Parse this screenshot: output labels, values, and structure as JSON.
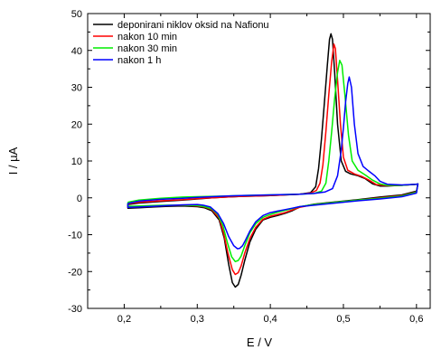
{
  "chart_data": {
    "type": "line",
    "xlabel": "E / V",
    "ylabel": "I / µA",
    "xlim": [
      0.15,
      0.62
    ],
    "ylim": [
      -30,
      50
    ],
    "xticks": [
      0.2,
      0.3,
      0.4,
      0.5,
      0.6
    ],
    "xtick_labels": [
      "0,2",
      "0,3",
      "0,4",
      "0,5",
      "0,6"
    ],
    "yticks": [
      -30,
      -20,
      -10,
      0,
      10,
      20,
      30,
      40,
      50
    ],
    "ytick_labels": [
      "-30",
      "-20",
      "-10",
      "0",
      "10",
      "20",
      "30",
      "40",
      "50"
    ],
    "grid": false,
    "legend_position": "top-left",
    "series": [
      {
        "name": "deponirani niklov oksid na Nafionu",
        "color": "#000000",
        "anodic": [
          [
            0.205,
            -1.8
          ],
          [
            0.22,
            -1.4
          ],
          [
            0.25,
            -1.0
          ],
          [
            0.28,
            -0.6
          ],
          [
            0.3,
            -0.3
          ],
          [
            0.32,
            0.0
          ],
          [
            0.34,
            0.2
          ],
          [
            0.36,
            0.4
          ],
          [
            0.38,
            0.5
          ],
          [
            0.4,
            0.6
          ],
          [
            0.42,
            0.8
          ],
          [
            0.44,
            1.0
          ],
          [
            0.455,
            1.4
          ],
          [
            0.462,
            3
          ],
          [
            0.466,
            8
          ],
          [
            0.47,
            16
          ],
          [
            0.474,
            26
          ],
          [
            0.478,
            36
          ],
          [
            0.481,
            43
          ],
          [
            0.483,
            44.5
          ],
          [
            0.485,
            43
          ],
          [
            0.488,
            34
          ],
          [
            0.492,
            20
          ],
          [
            0.497,
            10
          ],
          [
            0.503,
            7.2
          ],
          [
            0.51,
            6.5
          ],
          [
            0.52,
            6.0
          ],
          [
            0.53,
            5.2
          ],
          [
            0.54,
            3.8
          ],
          [
            0.55,
            3.2
          ],
          [
            0.56,
            3.2
          ],
          [
            0.57,
            3.3
          ],
          [
            0.58,
            3.4
          ],
          [
            0.6,
            3.7
          ],
          [
            0.602,
            3.8
          ]
        ],
        "cathodic": [
          [
            0.602,
            3.8
          ],
          [
            0.6,
            1.8
          ],
          [
            0.58,
            0.8
          ],
          [
            0.55,
            0.2
          ],
          [
            0.52,
            -0.5
          ],
          [
            0.5,
            -0.9
          ],
          [
            0.48,
            -1.3
          ],
          [
            0.46,
            -1.7
          ],
          [
            0.44,
            -2.5
          ],
          [
            0.43,
            -3.5
          ],
          [
            0.42,
            -4.2
          ],
          [
            0.41,
            -4.8
          ],
          [
            0.4,
            -5.3
          ],
          [
            0.39,
            -6.0
          ],
          [
            0.38,
            -8.5
          ],
          [
            0.372,
            -12
          ],
          [
            0.365,
            -17
          ],
          [
            0.36,
            -21
          ],
          [
            0.356,
            -23.5
          ],
          [
            0.352,
            -24.2
          ],
          [
            0.348,
            -23
          ],
          [
            0.343,
            -18
          ],
          [
            0.337,
            -11
          ],
          [
            0.33,
            -6
          ],
          [
            0.32,
            -3.5
          ],
          [
            0.31,
            -2.7
          ],
          [
            0.3,
            -2.4
          ],
          [
            0.28,
            -2.2
          ],
          [
            0.26,
            -2.3
          ],
          [
            0.24,
            -2.5
          ],
          [
            0.22,
            -2.7
          ],
          [
            0.205,
            -2.8
          ]
        ]
      },
      {
        "name": "nakon 10 min",
        "color": "#ff0000",
        "anodic": [
          [
            0.205,
            -1.6
          ],
          [
            0.22,
            -1.2
          ],
          [
            0.25,
            -0.8
          ],
          [
            0.28,
            -0.5
          ],
          [
            0.3,
            -0.2
          ],
          [
            0.32,
            0.0
          ],
          [
            0.34,
            0.2
          ],
          [
            0.36,
            0.4
          ],
          [
            0.38,
            0.5
          ],
          [
            0.4,
            0.6
          ],
          [
            0.42,
            0.8
          ],
          [
            0.44,
            1.0
          ],
          [
            0.455,
            1.3
          ],
          [
            0.463,
            2
          ],
          [
            0.468,
            4
          ],
          [
            0.472,
            9
          ],
          [
            0.476,
            18
          ],
          [
            0.48,
            28
          ],
          [
            0.484,
            37
          ],
          [
            0.487,
            41.7
          ],
          [
            0.489,
            40.5
          ],
          [
            0.492,
            32
          ],
          [
            0.496,
            20
          ],
          [
            0.5,
            11
          ],
          [
            0.506,
            7.5
          ],
          [
            0.515,
            6.5
          ],
          [
            0.525,
            5.8
          ],
          [
            0.535,
            4.8
          ],
          [
            0.545,
            3.6
          ],
          [
            0.56,
            3.3
          ],
          [
            0.58,
            3.4
          ],
          [
            0.6,
            3.7
          ],
          [
            0.602,
            3.8
          ]
        ],
        "cathodic": [
          [
            0.602,
            3.8
          ],
          [
            0.6,
            1.6
          ],
          [
            0.58,
            0.6
          ],
          [
            0.55,
            0.0
          ],
          [
            0.52,
            -0.6
          ],
          [
            0.5,
            -1.0
          ],
          [
            0.48,
            -1.4
          ],
          [
            0.46,
            -1.8
          ],
          [
            0.44,
            -2.6
          ],
          [
            0.43,
            -3.3
          ],
          [
            0.42,
            -4.0
          ],
          [
            0.41,
            -4.5
          ],
          [
            0.4,
            -5.0
          ],
          [
            0.39,
            -5.8
          ],
          [
            0.38,
            -8
          ],
          [
            0.372,
            -11
          ],
          [
            0.365,
            -15
          ],
          [
            0.36,
            -18.5
          ],
          [
            0.356,
            -20.3
          ],
          [
            0.352,
            -20.8
          ],
          [
            0.348,
            -19.5
          ],
          [
            0.342,
            -15
          ],
          [
            0.336,
            -9.5
          ],
          [
            0.33,
            -5.5
          ],
          [
            0.32,
            -3.2
          ],
          [
            0.31,
            -2.5
          ],
          [
            0.3,
            -2.2
          ],
          [
            0.28,
            -2.0
          ],
          [
            0.26,
            -2.1
          ],
          [
            0.24,
            -2.3
          ],
          [
            0.22,
            -2.5
          ],
          [
            0.205,
            -2.6
          ]
        ]
      },
      {
        "name": "nakon 30 min",
        "color": "#00ee00",
        "anodic": [
          [
            0.205,
            -1.2
          ],
          [
            0.22,
            -0.6
          ],
          [
            0.25,
            -0.1
          ],
          [
            0.28,
            0.2
          ],
          [
            0.3,
            0.3
          ],
          [
            0.32,
            0.4
          ],
          [
            0.34,
            0.5
          ],
          [
            0.36,
            0.6
          ],
          [
            0.38,
            0.7
          ],
          [
            0.4,
            0.8
          ],
          [
            0.42,
            0.9
          ],
          [
            0.44,
            1.0
          ],
          [
            0.46,
            1.2
          ],
          [
            0.47,
            1.8
          ],
          [
            0.476,
            4
          ],
          [
            0.48,
            10
          ],
          [
            0.484,
            18
          ],
          [
            0.488,
            27
          ],
          [
            0.492,
            34
          ],
          [
            0.495,
            37.3
          ],
          [
            0.498,
            36
          ],
          [
            0.502,
            28
          ],
          [
            0.507,
            17
          ],
          [
            0.512,
            10
          ],
          [
            0.52,
            7.5
          ],
          [
            0.53,
            6.2
          ],
          [
            0.54,
            4.8
          ],
          [
            0.55,
            3.8
          ],
          [
            0.56,
            3.4
          ],
          [
            0.58,
            3.4
          ],
          [
            0.6,
            3.7
          ],
          [
            0.602,
            3.8
          ]
        ],
        "cathodic": [
          [
            0.602,
            3.8
          ],
          [
            0.6,
            1.5
          ],
          [
            0.58,
            0.5
          ],
          [
            0.55,
            -0.1
          ],
          [
            0.52,
            -0.6
          ],
          [
            0.5,
            -1.0
          ],
          [
            0.48,
            -1.4
          ],
          [
            0.46,
            -1.8
          ],
          [
            0.44,
            -2.4
          ],
          [
            0.43,
            -2.9
          ],
          [
            0.42,
            -3.4
          ],
          [
            0.41,
            -3.9
          ],
          [
            0.4,
            -4.5
          ],
          [
            0.39,
            -5.3
          ],
          [
            0.38,
            -7
          ],
          [
            0.372,
            -9.5
          ],
          [
            0.365,
            -13
          ],
          [
            0.36,
            -15.8
          ],
          [
            0.356,
            -17.0
          ],
          [
            0.352,
            -17.3
          ],
          [
            0.347,
            -16
          ],
          [
            0.341,
            -12
          ],
          [
            0.335,
            -7.5
          ],
          [
            0.328,
            -4.5
          ],
          [
            0.32,
            -3.0
          ],
          [
            0.31,
            -2.4
          ],
          [
            0.3,
            -2.1
          ],
          [
            0.28,
            -2.0
          ],
          [
            0.26,
            -2.0
          ],
          [
            0.24,
            -2.1
          ],
          [
            0.22,
            -2.2
          ],
          [
            0.205,
            -2.3
          ]
        ]
      },
      {
        "name": "nakon 1 h",
        "color": "#0000ff",
        "anodic": [
          [
            0.205,
            -1.5
          ],
          [
            0.22,
            -0.9
          ],
          [
            0.25,
            -0.4
          ],
          [
            0.28,
            -0.1
          ],
          [
            0.3,
            0.1
          ],
          [
            0.32,
            0.3
          ],
          [
            0.34,
            0.5
          ],
          [
            0.36,
            0.6
          ],
          [
            0.38,
            0.7
          ],
          [
            0.4,
            0.8
          ],
          [
            0.42,
            0.9
          ],
          [
            0.44,
            1.0
          ],
          [
            0.46,
            1.2
          ],
          [
            0.475,
            1.6
          ],
          [
            0.485,
            2.5
          ],
          [
            0.492,
            6
          ],
          [
            0.497,
            13
          ],
          [
            0.5,
            19
          ],
          [
            0.503,
            26
          ],
          [
            0.506,
            31
          ],
          [
            0.508,
            32.8
          ],
          [
            0.511,
            30
          ],
          [
            0.515,
            20
          ],
          [
            0.52,
            12
          ],
          [
            0.527,
            8.5
          ],
          [
            0.535,
            7.2
          ],
          [
            0.543,
            6
          ],
          [
            0.55,
            4.5
          ],
          [
            0.56,
            3.7
          ],
          [
            0.58,
            3.5
          ],
          [
            0.6,
            3.7
          ],
          [
            0.602,
            3.8
          ]
        ],
        "cathodic": [
          [
            0.602,
            3.8
          ],
          [
            0.6,
            1.3
          ],
          [
            0.58,
            0.3
          ],
          [
            0.55,
            -0.3
          ],
          [
            0.52,
            -0.8
          ],
          [
            0.5,
            -1.2
          ],
          [
            0.48,
            -1.6
          ],
          [
            0.46,
            -2.0
          ],
          [
            0.44,
            -2.4
          ],
          [
            0.43,
            -2.8
          ],
          [
            0.42,
            -3.2
          ],
          [
            0.41,
            -3.6
          ],
          [
            0.4,
            -4.0
          ],
          [
            0.39,
            -4.8
          ],
          [
            0.38,
            -6.5
          ],
          [
            0.372,
            -9
          ],
          [
            0.366,
            -11.5
          ],
          [
            0.362,
            -13
          ],
          [
            0.358,
            -13.7
          ],
          [
            0.355,
            -13.8
          ],
          [
            0.35,
            -13
          ],
          [
            0.343,
            -10.5
          ],
          [
            0.336,
            -7
          ],
          [
            0.328,
            -4.2
          ],
          [
            0.318,
            -2.5
          ],
          [
            0.308,
            -2.0
          ],
          [
            0.3,
            -1.8
          ],
          [
            0.28,
            -1.9
          ],
          [
            0.26,
            -2.1
          ],
          [
            0.24,
            -2.3
          ],
          [
            0.22,
            -2.5
          ],
          [
            0.205,
            -2.6
          ]
        ]
      }
    ]
  }
}
